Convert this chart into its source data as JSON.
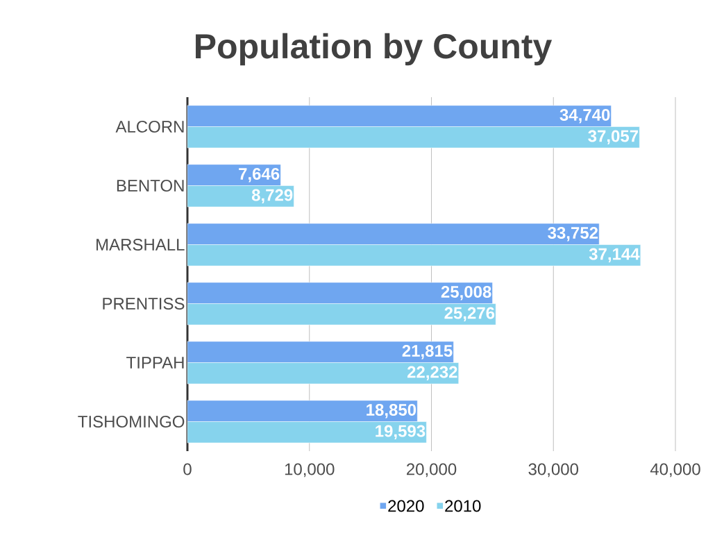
{
  "chart_data": {
    "type": "bar",
    "orientation": "horizontal",
    "title": "Population by County",
    "categories": [
      "ALCORN",
      "BENTON",
      "MARSHALL",
      "PRENTISS",
      "TIPPAH",
      "TISHOMINGO"
    ],
    "series": [
      {
        "name": "2020",
        "color": "#6fa6f0",
        "values": [
          34740,
          7646,
          33752,
          25008,
          21815,
          18850
        ],
        "value_labels": [
          "34,740",
          "7,646",
          "33,752",
          "25,008",
          "21,815",
          "18,850"
        ]
      },
      {
        "name": "2010",
        "color": "#86d3ed",
        "values": [
          37057,
          8729,
          37144,
          25276,
          22232,
          19593
        ],
        "value_labels": [
          "37,057",
          "8,729",
          "37,144",
          "25,276",
          "22,232",
          "19,593"
        ]
      }
    ],
    "xlim": [
      0,
      40000
    ],
    "xticks": [
      0,
      {
        "value": 10000,
        "label": "10,000"
      },
      {
        "value": 20000,
        "label": "20,000"
      },
      {
        "value": 30000,
        "label": "30,000"
      },
      {
        "value": 40000,
        "label": "40,000"
      }
    ],
    "grid": "x",
    "legend": "bottom",
    "data_labels": true
  }
}
